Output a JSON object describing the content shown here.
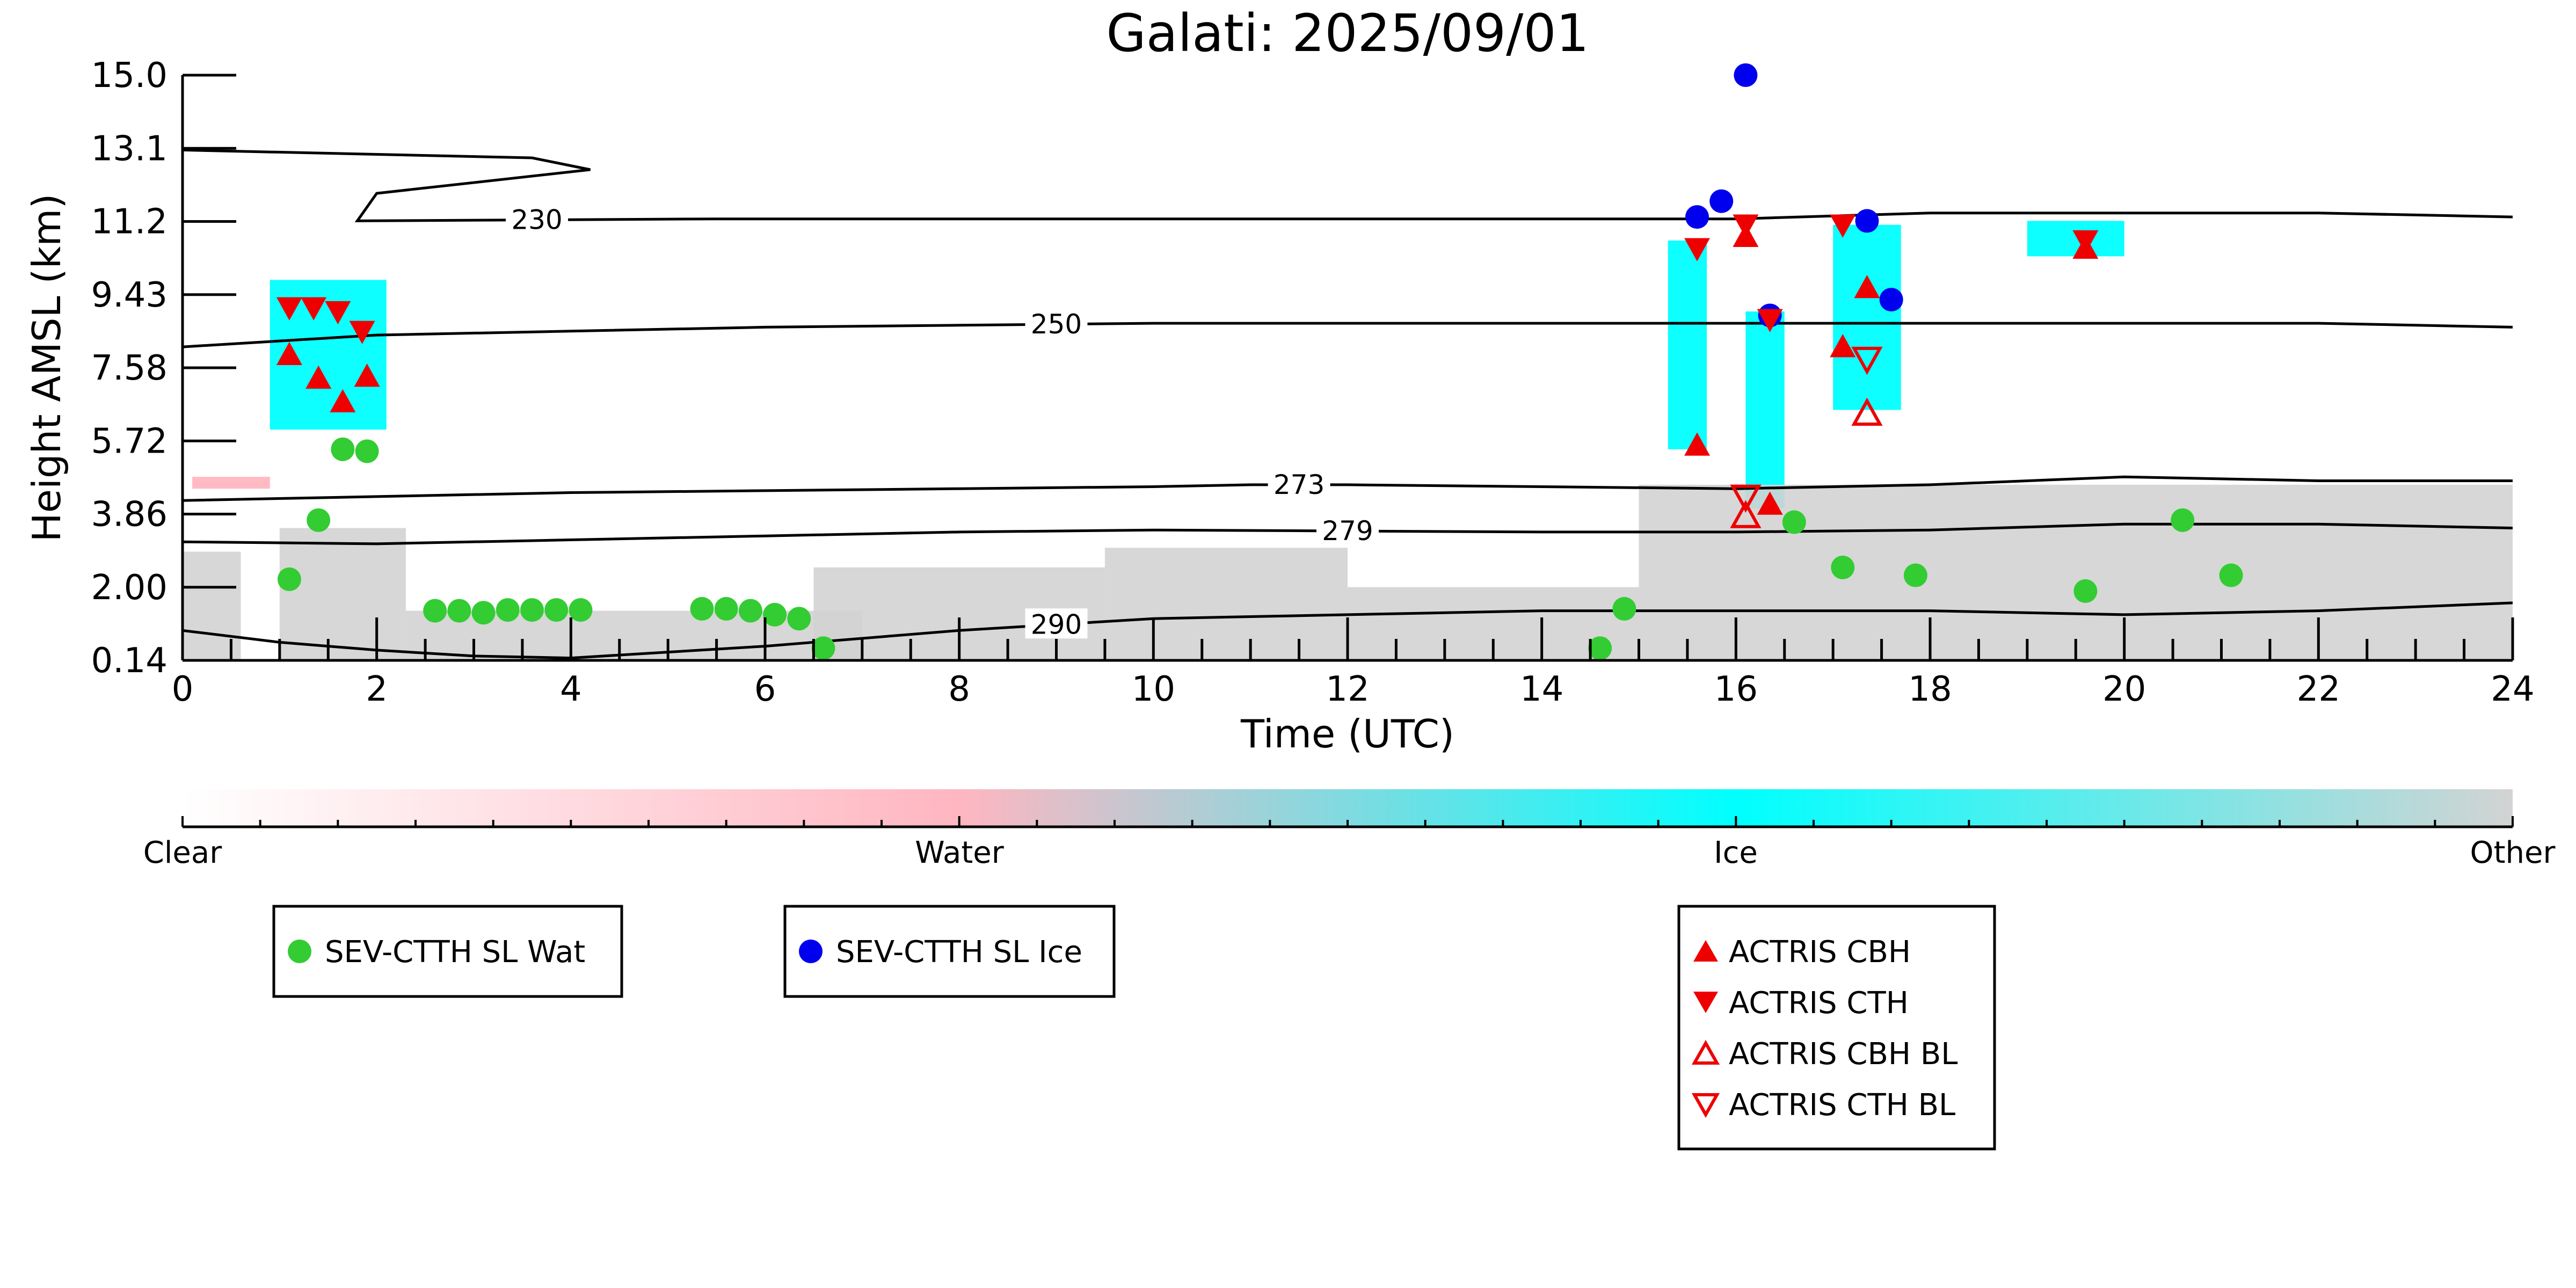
{
  "chart_data": {
    "type": "scatter",
    "title": "Galati: 2025/09/01",
    "xlabel": "Time (UTC)",
    "ylabel": "Height AMSL (km)",
    "xlim": [
      0,
      24
    ],
    "ylim": [
      0.14,
      15.0
    ],
    "x_ticks": [
      "0",
      "2",
      "4",
      "6",
      "8",
      "10",
      "12",
      "14",
      "16",
      "18",
      "20",
      "22",
      "24"
    ],
    "y_ticks": [
      "0.14",
      "2.00",
      "3.86",
      "5.72",
      "7.58",
      "9.43",
      "11.2",
      "13.1",
      "15.0"
    ],
    "colorbar": {
      "labels": [
        "Clear",
        "Water",
        "Ice",
        "Other"
      ],
      "colors": [
        "#ffffff",
        "#ffb6c1",
        "#00ffff",
        "#d3d3d3"
      ]
    },
    "temperature_contours": [
      {
        "label": "230",
        "x": [
          0,
          3.6,
          4.2,
          2.0,
          1.8,
          5.5,
          10,
          16,
          18,
          22,
          24
        ],
        "y": [
          13.1,
          12.9,
          12.6,
          12.0,
          11.3,
          11.35,
          11.35,
          11.35,
          11.5,
          11.5,
          11.4
        ]
      },
      {
        "label": "250",
        "x": [
          0,
          2,
          4,
          6,
          8,
          10,
          14,
          16,
          18,
          22,
          24
        ],
        "y": [
          8.1,
          8.4,
          8.5,
          8.6,
          8.65,
          8.7,
          8.7,
          8.7,
          8.7,
          8.7,
          8.6
        ]
      },
      {
        "label": "273",
        "x": [
          0,
          2,
          4,
          6,
          8,
          10,
          11,
          12,
          14,
          16,
          18,
          20,
          22,
          24
        ],
        "y": [
          4.2,
          4.3,
          4.4,
          4.45,
          4.5,
          4.55,
          4.6,
          4.6,
          4.55,
          4.5,
          4.6,
          4.8,
          4.7,
          4.7
        ]
      },
      {
        "label": "279",
        "x": [
          0,
          2,
          4,
          6,
          8,
          10,
          14,
          16,
          18,
          20,
          22,
          24
        ],
        "y": [
          3.15,
          3.1,
          3.2,
          3.3,
          3.4,
          3.45,
          3.4,
          3.4,
          3.45,
          3.6,
          3.6,
          3.5
        ]
      },
      {
        "label": "290",
        "x": [
          0,
          1,
          2,
          3,
          4,
          6,
          8,
          10,
          14,
          16,
          18,
          20,
          22,
          24
        ],
        "y": [
          0.9,
          0.6,
          0.4,
          0.25,
          0.2,
          0.5,
          0.9,
          1.2,
          1.4,
          1.4,
          1.4,
          1.3,
          1.4,
          1.6
        ]
      }
    ],
    "cloud_regions": [
      {
        "class": "Ice",
        "x0": 0.9,
        "x1": 2.1,
        "y0": 6.0,
        "y1": 9.8
      },
      {
        "class": "Ice",
        "x0": 15.3,
        "x1": 15.7,
        "y0": 5.5,
        "y1": 10.8
      },
      {
        "class": "Ice",
        "x0": 16.1,
        "x1": 16.5,
        "y0": 4.0,
        "y1": 9.0
      },
      {
        "class": "Ice",
        "x0": 17.0,
        "x1": 17.7,
        "y0": 6.5,
        "y1": 11.2
      },
      {
        "class": "Ice",
        "x0": 19.0,
        "x1": 20.0,
        "y0": 10.4,
        "y1": 11.3
      },
      {
        "class": "Other",
        "x0": 0.0,
        "x1": 0.6,
        "y0": 0.14,
        "y1": 2.9
      },
      {
        "class": "Other",
        "x0": 1.0,
        "x1": 2.3,
        "y0": 0.14,
        "y1": 3.5
      },
      {
        "class": "Other",
        "x0": 2.3,
        "x1": 7.0,
        "y0": 0.14,
        "y1": 1.4
      },
      {
        "class": "Other",
        "x0": 6.5,
        "x1": 9.5,
        "y0": 0.14,
        "y1": 2.5
      },
      {
        "class": "Other",
        "x0": 9.5,
        "x1": 12.0,
        "y0": 0.14,
        "y1": 3.0
      },
      {
        "class": "Other",
        "x0": 12.0,
        "x1": 15.0,
        "y0": 0.14,
        "y1": 2.0
      },
      {
        "class": "Other",
        "x0": 15.0,
        "x1": 24.0,
        "y0": 0.14,
        "y1": 4.6
      },
      {
        "class": "Water",
        "x0": 0.1,
        "x1": 0.9,
        "y0": 4.5,
        "y1": 4.8
      }
    ],
    "series": [
      {
        "name": "SEV-CTTH SL Wat",
        "color": "#33cc33",
        "marker": "circle",
        "x": [
          1.1,
          1.4,
          1.65,
          1.9,
          2.6,
          2.85,
          3.1,
          3.35,
          3.6,
          3.85,
          4.1,
          5.35,
          5.6,
          5.85,
          6.1,
          6.35,
          6.6,
          14.6,
          14.85,
          16.6,
          17.1,
          17.85,
          19.6,
          20.6,
          21.1
        ],
        "y": [
          2.2,
          3.7,
          5.5,
          5.45,
          1.4,
          1.4,
          1.35,
          1.42,
          1.42,
          1.42,
          1.42,
          1.45,
          1.45,
          1.4,
          1.3,
          1.2,
          0.45,
          0.45,
          1.45,
          3.65,
          2.5,
          2.3,
          1.9,
          3.7,
          2.3
        ]
      },
      {
        "name": "SEV-CTTH SL Ice",
        "color": "#0000ee",
        "marker": "circle",
        "x": [
          15.6,
          15.85,
          16.1,
          16.35,
          17.35,
          17.6
        ],
        "y": [
          11.4,
          11.8,
          15.0,
          8.9,
          11.3,
          9.3
        ]
      },
      {
        "name": "ACTRIS CBH",
        "color": "#ee0000",
        "marker": "triangle-up",
        "x": [
          1.1,
          1.4,
          1.65,
          1.9,
          15.6,
          16.1,
          16.35,
          17.1,
          17.35,
          19.6
        ],
        "y": [
          7.9,
          7.3,
          6.7,
          7.35,
          5.6,
          10.9,
          4.1,
          8.1,
          9.6,
          10.6
        ]
      },
      {
        "name": "ACTRIS CTH",
        "color": "#ee0000",
        "marker": "triangle-down",
        "x": [
          1.1,
          1.35,
          1.6,
          1.85,
          15.6,
          16.1,
          17.1,
          19.6,
          16.35
        ],
        "y": [
          9.1,
          9.1,
          9.0,
          8.5,
          10.6,
          11.2,
          11.2,
          10.8,
          8.8
        ]
      },
      {
        "name": "ACTRIS CBH BL",
        "color": "#ee0000",
        "marker": "triangle-up-open",
        "x": [
          16.1,
          17.35
        ],
        "y": [
          3.8,
          6.4
        ]
      },
      {
        "name": "ACTRIS CTH BL",
        "color": "#ee0000",
        "marker": "triangle-down-open",
        "x": [
          16.1,
          17.35
        ],
        "y": [
          4.3,
          7.8
        ]
      }
    ]
  }
}
